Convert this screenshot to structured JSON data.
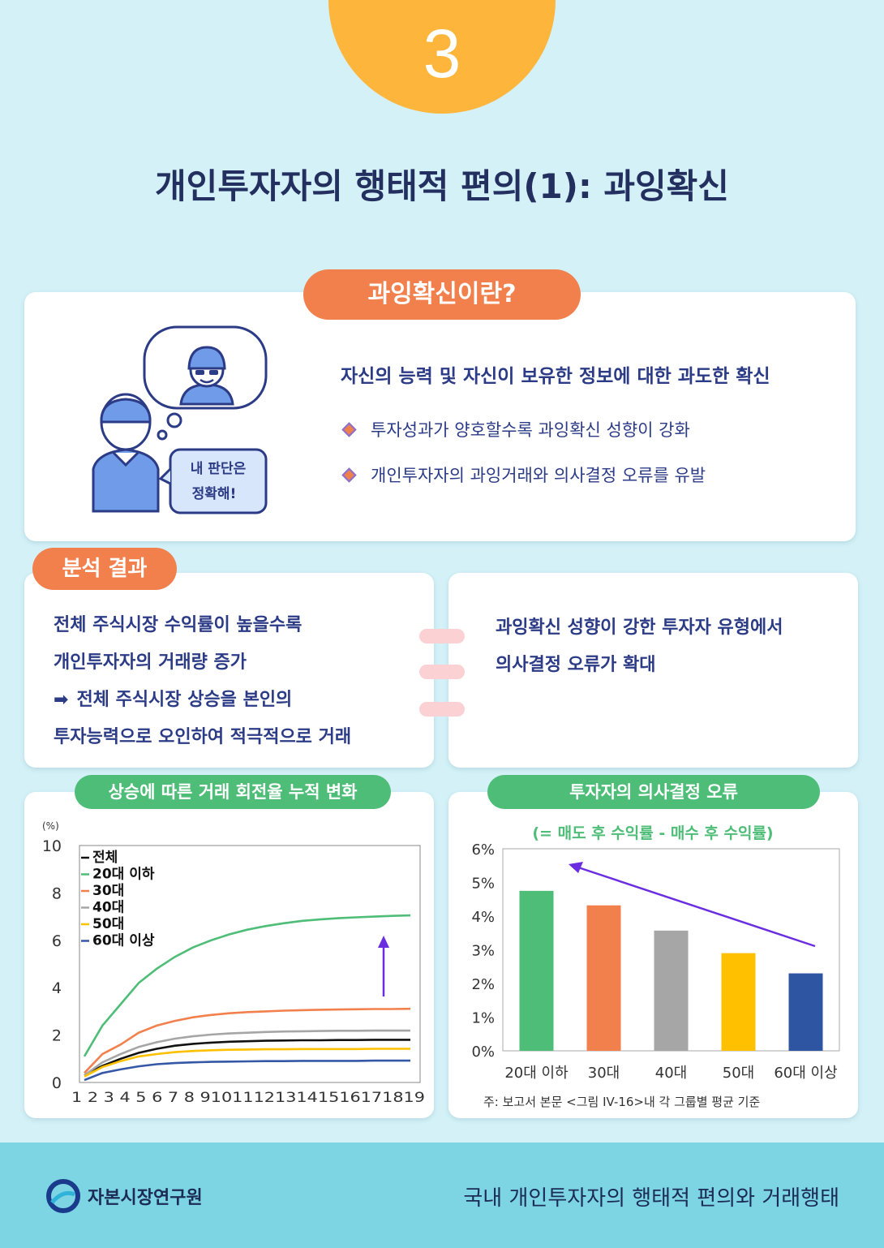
{
  "header": {
    "number": "3",
    "title": "개인투자자의 행태적 편의(1): 과잉확신"
  },
  "definition": {
    "pill": "과잉확신이란?",
    "speech_line1": "내 판단은",
    "speech_line2": "정확해!",
    "main": "자신의 능력 및 자신이 보유한 정보에 대한 과도한 확신",
    "bullets": [
      "투자성과가 양호할수록 과잉확신 성향이 강화",
      "개인투자자의 과잉거래와 의사결정 오류를 유발"
    ]
  },
  "analysis": {
    "pill": "분석 결과",
    "left_lines": [
      "전체 주식시장 수익률이 높을수록",
      "개인투자자의 거래량 증가",
      "전체 주식시장 상승을 본인의",
      "투자능력으로 오인하여 적극적으로 거래"
    ],
    "right_lines": [
      "과잉확신 성향이 강한 투자자 유형에서",
      "의사결정 오류가 확대"
    ]
  },
  "colors": {
    "navy": "#2c3b86",
    "orange": "#f2804d",
    "green": "#4ebd77",
    "yellow_badge": "#fdb53b",
    "series": {
      "전체": "#111111",
      "20대 이하": "#4ebd77",
      "30대": "#f2804d",
      "40대": "#a6a6a6",
      "50대": "#ffc000",
      "60대 이상": "#3457a6"
    }
  },
  "chart_data": [
    {
      "type": "line",
      "title": "상승에 따른 거래 회전율 누적 변화",
      "ylabel": "(%)",
      "ylim": [
        0,
        10
      ],
      "yticks": [
        "0",
        "2",
        "4",
        "6",
        "8",
        "10"
      ],
      "x": [
        1,
        2,
        3,
        4,
        5,
        6,
        7,
        8,
        9,
        10,
        11,
        12,
        13,
        14,
        15,
        16,
        17,
        18,
        19
      ],
      "xtick_text": "1 2 3 4 5 6 7 8 910111213141516171819",
      "legend_position": "top-left",
      "series": [
        {
          "name": "전체",
          "color": "#111111",
          "values": [
            0.3,
            0.7,
            1.0,
            1.25,
            1.42,
            1.55,
            1.63,
            1.68,
            1.72,
            1.74,
            1.76,
            1.77,
            1.78,
            1.78,
            1.79,
            1.79,
            1.8,
            1.8,
            1.8
          ]
        },
        {
          "name": "20대 이하",
          "color": "#4ebd77",
          "values": [
            1.1,
            2.4,
            3.3,
            4.2,
            4.8,
            5.3,
            5.7,
            6.0,
            6.25,
            6.45,
            6.6,
            6.72,
            6.82,
            6.88,
            6.93,
            6.97,
            7.0,
            7.03,
            7.05
          ]
        },
        {
          "name": "30대",
          "color": "#f2804d",
          "values": [
            0.4,
            1.2,
            1.6,
            2.1,
            2.4,
            2.6,
            2.75,
            2.85,
            2.92,
            2.97,
            3.0,
            3.03,
            3.05,
            3.07,
            3.08,
            3.09,
            3.1,
            3.1,
            3.11
          ]
        },
        {
          "name": "40대",
          "color": "#a6a6a6",
          "values": [
            0.3,
            0.85,
            1.2,
            1.5,
            1.7,
            1.85,
            1.95,
            2.02,
            2.07,
            2.1,
            2.13,
            2.15,
            2.16,
            2.17,
            2.18,
            2.18,
            2.19,
            2.19,
            2.19
          ]
        },
        {
          "name": "50대",
          "color": "#ffc000",
          "values": [
            0.25,
            0.65,
            0.9,
            1.1,
            1.2,
            1.28,
            1.33,
            1.36,
            1.38,
            1.39,
            1.4,
            1.4,
            1.41,
            1.41,
            1.41,
            1.41,
            1.42,
            1.42,
            1.42
          ]
        },
        {
          "name": "60대 이상",
          "color": "#3457a6",
          "values": [
            0.1,
            0.4,
            0.55,
            0.68,
            0.77,
            0.82,
            0.85,
            0.87,
            0.88,
            0.89,
            0.9,
            0.9,
            0.91,
            0.91,
            0.91,
            0.91,
            0.92,
            0.92,
            0.92
          ]
        }
      ]
    },
    {
      "type": "bar",
      "title": "투자자의 의사결정 오류",
      "subtitle": "(= 매도 후 수익률 - 매수 후 수익률)",
      "categories": [
        "20대 이하",
        "30대",
        "40대",
        "50대",
        "60대 이상"
      ],
      "values": [
        4.75,
        4.32,
        3.57,
        2.9,
        2.3
      ],
      "colors": [
        "#4ebd77",
        "#f2804d",
        "#a6a6a6",
        "#ffc000",
        "#2e55a2"
      ],
      "ylim": [
        0,
        6
      ],
      "yticks": [
        "0%",
        "1%",
        "2%",
        "3%",
        "4%",
        "5%",
        "6%"
      ],
      "note": "주: 보고서 본문 <그림 IV-16>내 각 그룹별 평균 기준"
    }
  ],
  "footer": {
    "org": "자본시장연구원",
    "report": "국내 개인투자자의 행태적 편의와 거래행태"
  }
}
